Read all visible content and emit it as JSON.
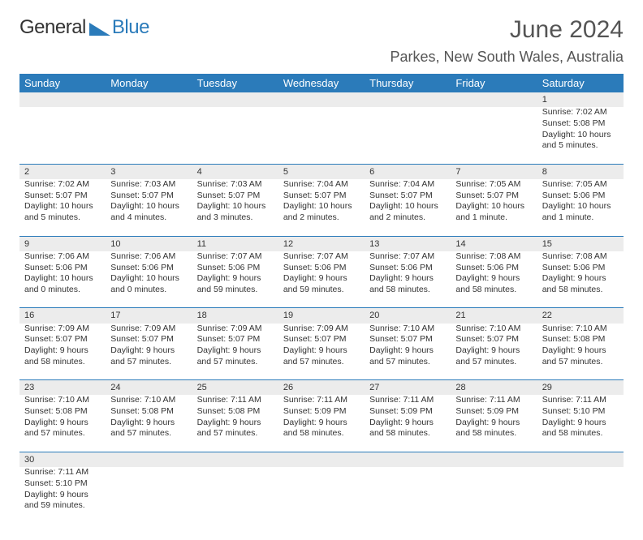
{
  "logo": {
    "part1": "General",
    "part2": "Blue",
    "triangle_color": "#2b7bba"
  },
  "title": "June 2024",
  "location": "Parkes, New South Wales, Australia",
  "header_bg": "#2b7bba",
  "daynum_bg": "#ececec",
  "weekdays": [
    "Sunday",
    "Monday",
    "Tuesday",
    "Wednesday",
    "Thursday",
    "Friday",
    "Saturday"
  ],
  "weeks": [
    [
      null,
      null,
      null,
      null,
      null,
      null,
      {
        "n": "1",
        "sr": "Sunrise: 7:02 AM",
        "ss": "Sunset: 5:08 PM",
        "d1": "Daylight: 10 hours",
        "d2": "and 5 minutes."
      }
    ],
    [
      {
        "n": "2",
        "sr": "Sunrise: 7:02 AM",
        "ss": "Sunset: 5:07 PM",
        "d1": "Daylight: 10 hours",
        "d2": "and 5 minutes."
      },
      {
        "n": "3",
        "sr": "Sunrise: 7:03 AM",
        "ss": "Sunset: 5:07 PM",
        "d1": "Daylight: 10 hours",
        "d2": "and 4 minutes."
      },
      {
        "n": "4",
        "sr": "Sunrise: 7:03 AM",
        "ss": "Sunset: 5:07 PM",
        "d1": "Daylight: 10 hours",
        "d2": "and 3 minutes."
      },
      {
        "n": "5",
        "sr": "Sunrise: 7:04 AM",
        "ss": "Sunset: 5:07 PM",
        "d1": "Daylight: 10 hours",
        "d2": "and 2 minutes."
      },
      {
        "n": "6",
        "sr": "Sunrise: 7:04 AM",
        "ss": "Sunset: 5:07 PM",
        "d1": "Daylight: 10 hours",
        "d2": "and 2 minutes."
      },
      {
        "n": "7",
        "sr": "Sunrise: 7:05 AM",
        "ss": "Sunset: 5:07 PM",
        "d1": "Daylight: 10 hours",
        "d2": "and 1 minute."
      },
      {
        "n": "8",
        "sr": "Sunrise: 7:05 AM",
        "ss": "Sunset: 5:06 PM",
        "d1": "Daylight: 10 hours",
        "d2": "and 1 minute."
      }
    ],
    [
      {
        "n": "9",
        "sr": "Sunrise: 7:06 AM",
        "ss": "Sunset: 5:06 PM",
        "d1": "Daylight: 10 hours",
        "d2": "and 0 minutes."
      },
      {
        "n": "10",
        "sr": "Sunrise: 7:06 AM",
        "ss": "Sunset: 5:06 PM",
        "d1": "Daylight: 10 hours",
        "d2": "and 0 minutes."
      },
      {
        "n": "11",
        "sr": "Sunrise: 7:07 AM",
        "ss": "Sunset: 5:06 PM",
        "d1": "Daylight: 9 hours",
        "d2": "and 59 minutes."
      },
      {
        "n": "12",
        "sr": "Sunrise: 7:07 AM",
        "ss": "Sunset: 5:06 PM",
        "d1": "Daylight: 9 hours",
        "d2": "and 59 minutes."
      },
      {
        "n": "13",
        "sr": "Sunrise: 7:07 AM",
        "ss": "Sunset: 5:06 PM",
        "d1": "Daylight: 9 hours",
        "d2": "and 58 minutes."
      },
      {
        "n": "14",
        "sr": "Sunrise: 7:08 AM",
        "ss": "Sunset: 5:06 PM",
        "d1": "Daylight: 9 hours",
        "d2": "and 58 minutes."
      },
      {
        "n": "15",
        "sr": "Sunrise: 7:08 AM",
        "ss": "Sunset: 5:06 PM",
        "d1": "Daylight: 9 hours",
        "d2": "and 58 minutes."
      }
    ],
    [
      {
        "n": "16",
        "sr": "Sunrise: 7:09 AM",
        "ss": "Sunset: 5:07 PM",
        "d1": "Daylight: 9 hours",
        "d2": "and 58 minutes."
      },
      {
        "n": "17",
        "sr": "Sunrise: 7:09 AM",
        "ss": "Sunset: 5:07 PM",
        "d1": "Daylight: 9 hours",
        "d2": "and 57 minutes."
      },
      {
        "n": "18",
        "sr": "Sunrise: 7:09 AM",
        "ss": "Sunset: 5:07 PM",
        "d1": "Daylight: 9 hours",
        "d2": "and 57 minutes."
      },
      {
        "n": "19",
        "sr": "Sunrise: 7:09 AM",
        "ss": "Sunset: 5:07 PM",
        "d1": "Daylight: 9 hours",
        "d2": "and 57 minutes."
      },
      {
        "n": "20",
        "sr": "Sunrise: 7:10 AM",
        "ss": "Sunset: 5:07 PM",
        "d1": "Daylight: 9 hours",
        "d2": "and 57 minutes."
      },
      {
        "n": "21",
        "sr": "Sunrise: 7:10 AM",
        "ss": "Sunset: 5:07 PM",
        "d1": "Daylight: 9 hours",
        "d2": "and 57 minutes."
      },
      {
        "n": "22",
        "sr": "Sunrise: 7:10 AM",
        "ss": "Sunset: 5:08 PM",
        "d1": "Daylight: 9 hours",
        "d2": "and 57 minutes."
      }
    ],
    [
      {
        "n": "23",
        "sr": "Sunrise: 7:10 AM",
        "ss": "Sunset: 5:08 PM",
        "d1": "Daylight: 9 hours",
        "d2": "and 57 minutes."
      },
      {
        "n": "24",
        "sr": "Sunrise: 7:10 AM",
        "ss": "Sunset: 5:08 PM",
        "d1": "Daylight: 9 hours",
        "d2": "and 57 minutes."
      },
      {
        "n": "25",
        "sr": "Sunrise: 7:11 AM",
        "ss": "Sunset: 5:08 PM",
        "d1": "Daylight: 9 hours",
        "d2": "and 57 minutes."
      },
      {
        "n": "26",
        "sr": "Sunrise: 7:11 AM",
        "ss": "Sunset: 5:09 PM",
        "d1": "Daylight: 9 hours",
        "d2": "and 58 minutes."
      },
      {
        "n": "27",
        "sr": "Sunrise: 7:11 AM",
        "ss": "Sunset: 5:09 PM",
        "d1": "Daylight: 9 hours",
        "d2": "and 58 minutes."
      },
      {
        "n": "28",
        "sr": "Sunrise: 7:11 AM",
        "ss": "Sunset: 5:09 PM",
        "d1": "Daylight: 9 hours",
        "d2": "and 58 minutes."
      },
      {
        "n": "29",
        "sr": "Sunrise: 7:11 AM",
        "ss": "Sunset: 5:10 PM",
        "d1": "Daylight: 9 hours",
        "d2": "and 58 minutes."
      }
    ],
    [
      {
        "n": "30",
        "sr": "Sunrise: 7:11 AM",
        "ss": "Sunset: 5:10 PM",
        "d1": "Daylight: 9 hours",
        "d2": "and 59 minutes."
      },
      null,
      null,
      null,
      null,
      null,
      null
    ]
  ]
}
